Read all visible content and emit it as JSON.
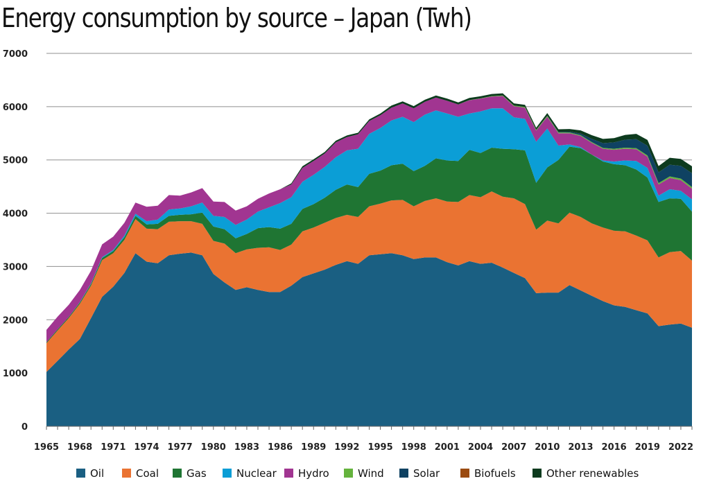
{
  "chart_data": {
    "type": "area",
    "stacked": true,
    "title": "Energy consumption by source – Japan (Twh)",
    "xlabel": "",
    "ylabel": "",
    "ylim": [
      0,
      7000
    ],
    "yticks": [
      0,
      1000,
      2000,
      3000,
      4000,
      5000,
      6000,
      7000
    ],
    "ytick_labels": [
      "0",
      "1000",
      "2000",
      "3000",
      "4000",
      "5000",
      "6000",
      "7000"
    ],
    "xticks": [
      1965,
      1968,
      1971,
      1974,
      1977,
      1980,
      1983,
      1986,
      1989,
      1992,
      1995,
      1998,
      2001,
      2004,
      2007,
      2010,
      2013,
      2016,
      2019,
      2022
    ],
    "xtick_labels": [
      "1965",
      "1968",
      "1971",
      "1974",
      "1977",
      "1980",
      "1983",
      "1986",
      "1989",
      "1992",
      "1995",
      "1998",
      "2001",
      "2004",
      "2007",
      "2010",
      "2013",
      "2016",
      "2019",
      "2022"
    ],
    "grid": "horizontal",
    "legend_position": "bottom",
    "x": [
      1965,
      1966,
      1967,
      1968,
      1969,
      1970,
      1971,
      1972,
      1973,
      1974,
      1975,
      1976,
      1977,
      1978,
      1979,
      1980,
      1981,
      1982,
      1983,
      1984,
      1985,
      1986,
      1987,
      1988,
      1989,
      1990,
      1991,
      1992,
      1993,
      1994,
      1995,
      1996,
      1997,
      1998,
      1999,
      2000,
      2001,
      2002,
      2003,
      2004,
      2005,
      2006,
      2007,
      2008,
      2009,
      2010,
      2011,
      2012,
      2013,
      2014,
      2015,
      2016,
      2017,
      2018,
      2019,
      2020,
      2021,
      2022,
      2023
    ],
    "series": [
      {
        "name": "Oil",
        "color": "#1a5f82",
        "values": [
          1020,
          1230,
          1440,
          1640,
          2030,
          2430,
          2620,
          2880,
          3250,
          3090,
          3060,
          3210,
          3240,
          3260,
          3210,
          2860,
          2700,
          2560,
          2610,
          2560,
          2520,
          2520,
          2640,
          2800,
          2870,
          2940,
          3030,
          3100,
          3050,
          3210,
          3230,
          3250,
          3210,
          3140,
          3170,
          3170,
          3080,
          3020,
          3100,
          3050,
          3070,
          2980,
          2880,
          2780,
          2500,
          2510,
          2510,
          2650,
          2550,
          2450,
          2350,
          2270,
          2240,
          2180,
          2120,
          1880,
          1910,
          1930,
          1850
        ]
      },
      {
        "name": "Coal",
        "color": "#ea7332",
        "values": [
          540,
          570,
          590,
          660,
          610,
          690,
          630,
          620,
          640,
          620,
          640,
          630,
          610,
          590,
          590,
          620,
          730,
          690,
          710,
          790,
          840,
          790,
          770,
          860,
          860,
          880,
          880,
          870,
          880,
          920,
          950,
          990,
          1040,
          990,
          1060,
          1110,
          1140,
          1190,
          1240,
          1250,
          1340,
          1330,
          1400,
          1390,
          1190,
          1350,
          1300,
          1360,
          1380,
          1360,
          1380,
          1400,
          1420,
          1400,
          1370,
          1290,
          1360,
          1360,
          1260
        ]
      },
      {
        "name": "Gas",
        "color": "#1f7533",
        "values": [
          20,
          20,
          20,
          25,
          30,
          40,
          40,
          50,
          60,
          80,
          100,
          110,
          120,
          130,
          210,
          270,
          270,
          280,
          290,
          370,
          380,
          400,
          390,
          420,
          440,
          470,
          530,
          570,
          560,
          610,
          620,
          660,
          680,
          660,
          660,
          750,
          770,
          770,
          850,
          830,
          820,
          900,
          920,
          1010,
          880,
          1000,
          1190,
          1240,
          1290,
          1290,
          1240,
          1250,
          1240,
          1240,
          1180,
          1040,
          1010,
          980,
          920
        ]
      },
      {
        "name": "Nuclear",
        "color": "#0b9ed6",
        "values": [
          0,
          0,
          0,
          5,
          10,
          15,
          20,
          30,
          40,
          60,
          80,
          120,
          120,
          150,
          190,
          200,
          230,
          250,
          270,
          310,
          370,
          480,
          500,
          510,
          550,
          580,
          610,
          640,
          720,
          750,
          800,
          840,
          880,
          920,
          960,
          900,
          880,
          830,
          680,
          780,
          740,
          760,
          600,
          590,
          770,
          730,
          270,
          40,
          20,
          0,
          20,
          50,
          90,
          160,
          180,
          120,
          170,
          150,
          230
        ]
      },
      {
        "name": "Hydro",
        "color": "#a13591",
        "values": [
          230,
          240,
          230,
          230,
          240,
          240,
          250,
          240,
          210,
          270,
          260,
          270,
          240,
          260,
          270,
          270,
          280,
          270,
          250,
          240,
          260,
          260,
          240,
          260,
          260,
          250,
          280,
          250,
          270,
          240,
          240,
          240,
          250,
          260,
          240,
          240,
          240,
          230,
          250,
          240,
          220,
          230,
          210,
          210,
          210,
          220,
          230,
          210,
          210,
          220,
          220,
          220,
          220,
          220,
          210,
          210,
          210,
          200,
          200
        ]
      },
      {
        "name": "Wind",
        "color": "#65b33d",
        "values": [
          0,
          0,
          0,
          0,
          0,
          0,
          0,
          0,
          0,
          0,
          0,
          0,
          0,
          0,
          0,
          0,
          0,
          0,
          0,
          0,
          0,
          0,
          0,
          0,
          0,
          0,
          0,
          0,
          0,
          0,
          0,
          0,
          0,
          0,
          0,
          0,
          0,
          0,
          3,
          5,
          8,
          10,
          12,
          15,
          15,
          15,
          15,
          15,
          15,
          15,
          15,
          20,
          20,
          20,
          25,
          25,
          30,
          30,
          30
        ]
      },
      {
        "name": "Solar",
        "color": "#0f4262",
        "values": [
          0,
          0,
          0,
          0,
          0,
          0,
          0,
          0,
          0,
          0,
          0,
          0,
          0,
          0,
          0,
          0,
          0,
          0,
          0,
          0,
          0,
          0,
          0,
          0,
          0,
          0,
          0,
          0,
          0,
          0,
          0,
          0,
          0,
          0,
          0,
          0,
          0,
          0,
          0,
          0,
          0,
          0,
          0,
          0,
          0,
          5,
          10,
          15,
          30,
          60,
          90,
          120,
          150,
          170,
          180,
          200,
          220,
          240,
          260
        ]
      },
      {
        "name": "Biofuels",
        "color": "#9b4b10",
        "values": [
          0,
          0,
          0,
          0,
          0,
          0,
          0,
          0,
          0,
          0,
          0,
          0,
          0,
          0,
          0,
          0,
          0,
          0,
          0,
          0,
          0,
          0,
          0,
          0,
          0,
          0,
          0,
          0,
          0,
          0,
          0,
          0,
          0,
          0,
          0,
          0,
          0,
          0,
          0,
          0,
          0,
          0,
          0,
          0,
          0,
          0,
          0,
          0,
          0,
          0,
          0,
          0,
          0,
          0,
          0,
          0,
          0,
          0,
          0
        ]
      },
      {
        "name": "Other renewables",
        "color": "#0d3b1e",
        "values": [
          0,
          0,
          0,
          0,
          0,
          0,
          0,
          0,
          0,
          0,
          0,
          0,
          0,
          0,
          0,
          0,
          0,
          0,
          0,
          0,
          0,
          0,
          20,
          30,
          30,
          30,
          30,
          30,
          30,
          30,
          30,
          40,
          40,
          40,
          40,
          40,
          40,
          40,
          40,
          40,
          40,
          40,
          40,
          40,
          40,
          50,
          50,
          50,
          60,
          70,
          80,
          80,
          90,
          100,
          110,
          120,
          130,
          130,
          130
        ]
      }
    ]
  }
}
